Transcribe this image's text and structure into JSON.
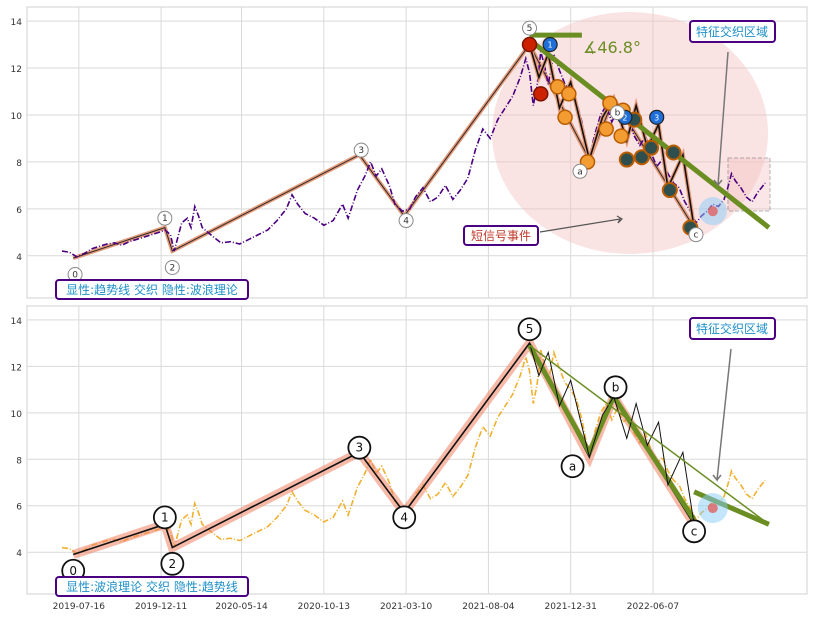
{
  "chart_data": [
    {
      "type": "line",
      "panel": "top",
      "ylim": [
        2.2,
        14.6
      ],
      "yticks": [
        4,
        6,
        8,
        10,
        12,
        14
      ],
      "grid": true,
      "series": [
        {
          "color": "#4b0082",
          "style": "dash-dot",
          "points": [
            [
              0.0,
              4.2
            ],
            [
              0.4,
              4.15
            ],
            [
              0.8,
              3.95
            ],
            [
              1.2,
              4.1
            ],
            [
              1.6,
              4.3
            ],
            [
              2.0,
              4.4
            ],
            [
              2.4,
              4.5
            ],
            [
              2.8,
              4.55
            ],
            [
              3.2,
              4.45
            ],
            [
              3.6,
              4.6
            ],
            [
              4.0,
              4.7
            ],
            [
              4.4,
              4.8
            ],
            [
              4.8,
              4.9
            ],
            [
              5.2,
              5.0
            ],
            [
              5.5,
              5.1
            ],
            [
              5.8,
              4.9
            ],
            [
              6.0,
              4.2
            ],
            [
              6.1,
              4.5
            ],
            [
              6.4,
              5.4
            ],
            [
              6.7,
              5.6
            ],
            [
              6.9,
              5.2
            ],
            [
              7.1,
              6.1
            ],
            [
              7.3,
              5.7
            ],
            [
              7.5,
              5.2
            ],
            [
              7.8,
              5.0
            ],
            [
              8.1,
              4.8
            ],
            [
              8.5,
              4.55
            ],
            [
              9.0,
              4.6
            ],
            [
              9.5,
              4.5
            ],
            [
              10.0,
              4.7
            ],
            [
              10.5,
              4.9
            ],
            [
              11.0,
              5.1
            ],
            [
              11.5,
              5.5
            ],
            [
              12.0,
              6.0
            ],
            [
              12.3,
              6.6
            ],
            [
              12.6,
              6.2
            ],
            [
              13.0,
              5.8
            ],
            [
              13.5,
              5.6
            ],
            [
              14.0,
              5.3
            ],
            [
              14.5,
              5.5
            ],
            [
              15.0,
              6.2
            ],
            [
              15.3,
              5.6
            ],
            [
              15.8,
              6.8
            ],
            [
              16.2,
              7.4
            ],
            [
              16.5,
              8.0
            ],
            [
              16.8,
              7.4
            ],
            [
              17.1,
              7.7
            ],
            [
              17.5,
              7.0
            ],
            [
              17.8,
              6.2
            ],
            [
              18.2,
              5.9
            ],
            [
              18.6,
              6.0
            ],
            [
              18.9,
              6.5
            ],
            [
              19.3,
              6.9
            ],
            [
              19.7,
              6.3
            ],
            [
              20.1,
              6.5
            ],
            [
              20.5,
              7.0
            ],
            [
              20.9,
              6.4
            ],
            [
              21.3,
              6.8
            ],
            [
              21.7,
              7.3
            ],
            [
              22.1,
              8.5
            ],
            [
              22.5,
              9.4
            ],
            [
              22.9,
              9.0
            ],
            [
              23.3,
              9.8
            ],
            [
              23.7,
              10.3
            ],
            [
              24.1,
              10.8
            ],
            [
              24.5,
              11.6
            ],
            [
              24.8,
              12.4
            ],
            [
              25.0,
              11.8
            ],
            [
              25.2,
              10.4
            ],
            [
              25.4,
              11.2
            ],
            [
              25.6,
              12.7
            ],
            [
              25.8,
              12.1
            ],
            [
              26.0,
              11.3
            ],
            [
              26.3,
              12.6
            ],
            [
              26.6,
              11.9
            ],
            [
              26.9,
              11.3
            ],
            [
              27.2,
              11.0
            ],
            [
              27.5,
              10.6
            ],
            [
              27.8,
              9.7
            ],
            [
              28.0,
              8.9
            ],
            [
              28.2,
              8.2
            ],
            [
              28.5,
              9.2
            ],
            [
              28.8,
              10.0
            ],
            [
              29.1,
              10.4
            ],
            [
              29.4,
              9.7
            ],
            [
              29.7,
              10.2
            ],
            [
              30.0,
              9.6
            ],
            [
              30.3,
              9.8
            ],
            [
              30.6,
              9.1
            ],
            [
              30.9,
              8.7
            ],
            [
              31.2,
              9.1
            ],
            [
              31.5,
              8.4
            ],
            [
              31.8,
              7.8
            ],
            [
              32.1,
              8.1
            ],
            [
              32.4,
              7.5
            ],
            [
              32.7,
              7.1
            ],
            [
              33.0,
              6.9
            ],
            [
              33.3,
              6.3
            ],
            [
              33.6,
              5.9
            ],
            [
              33.9,
              5.4
            ],
            [
              34.2,
              5.7
            ],
            [
              34.5,
              5.9
            ],
            [
              34.8,
              6.2
            ],
            [
              35.1,
              6.1
            ],
            [
              35.4,
              6.4
            ],
            [
              35.6,
              6.9
            ],
            [
              35.8,
              7.5
            ],
            [
              36.0,
              7.2
            ],
            [
              36.3,
              6.9
            ],
            [
              36.6,
              6.5
            ],
            [
              36.9,
              6.3
            ],
            [
              37.2,
              6.7
            ],
            [
              37.4,
              6.9
            ],
            [
              37.6,
              7.1
            ]
          ]
        }
      ],
      "wave_labels": [
        "0",
        "1",
        "2",
        "3",
        "4",
        "5",
        "a",
        "b",
        "c"
      ],
      "angle_label": "∡46.8°",
      "annotations": {
        "short_signal": "短信号事件",
        "feature_zone": "特征交织区域",
        "bottom_note": "显性:趋势线 交织 隐性:波浪理论"
      },
      "markers_numbers": [
        "1",
        "2",
        "3"
      ]
    },
    {
      "type": "line",
      "panel": "bottom",
      "ylim": [
        2.2,
        14.6
      ],
      "yticks": [
        4,
        6,
        8,
        10,
        12,
        14
      ],
      "grid": true,
      "series": [
        {
          "color": "#f0b030",
          "style": "dash-dot",
          "points_ref": "same-as-top"
        }
      ],
      "wave_labels": [
        "0",
        "1",
        "2",
        "3",
        "4",
        "5",
        "a",
        "b",
        "c"
      ],
      "annotations": {
        "feature_zone": "特征交织区域",
        "bottom_note": "显性:波浪理论 交织 隐性:趋势线"
      },
      "x_tick_labels": [
        "2019-07-16",
        "2019-12-11",
        "2020-05-14",
        "2020-10-13",
        "2021-03-10",
        "2021-08-04",
        "2021-12-31",
        "2022-06-07"
      ]
    }
  ]
}
